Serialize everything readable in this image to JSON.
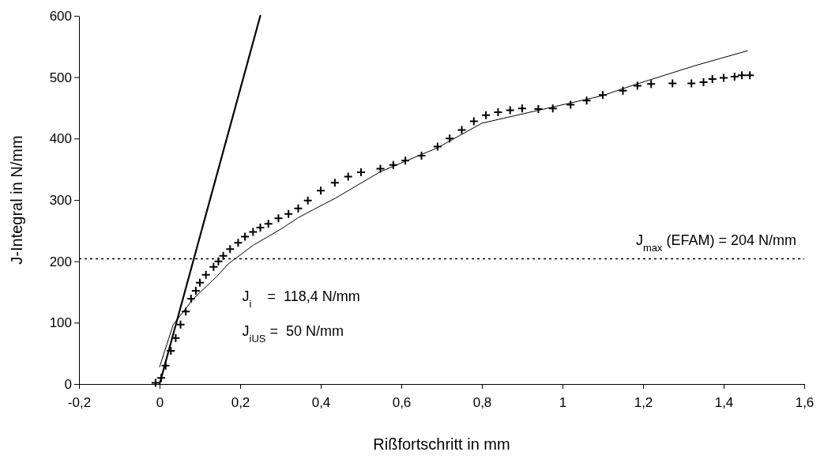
{
  "chart_data": {
    "type": "scatter",
    "xlabel": "Rißfortschritt in mm",
    "ylabel": "J-Integral in N/mm",
    "xlim": [
      -0.2,
      1.6
    ],
    "ylim": [
      0,
      600
    ],
    "xticks": [
      {
        "value": -0.2,
        "label": "-0,2"
      },
      0,
      {
        "value": 0.2,
        "label": "0,2"
      },
      {
        "value": 0.4,
        "label": "0,4"
      },
      {
        "value": 0.6,
        "label": "0,6"
      },
      {
        "value": 0.8,
        "label": "0,8"
      },
      1,
      {
        "value": 1.2,
        "label": "1,2"
      },
      {
        "value": 1.4,
        "label": "1,4"
      },
      {
        "value": 1.6,
        "label": "1,6"
      }
    ],
    "yticks": [
      0,
      100,
      200,
      300,
      400,
      500,
      600
    ],
    "grid": false,
    "series": [
      {
        "color": "#000000",
        "marker": "cross",
        "x": [
          -0.01,
          0.004,
          0.015,
          0.028,
          0.04,
          0.052,
          0.065,
          0.078,
          0.09,
          0.1,
          0.115,
          0.134,
          0.146,
          0.158,
          0.175,
          0.195,
          0.212,
          0.232,
          0.25,
          0.27,
          0.295,
          0.32,
          0.344,
          0.368,
          0.4,
          0.435,
          0.468,
          0.5,
          0.548,
          0.58,
          0.61,
          0.65,
          0.69,
          0.72,
          0.75,
          0.78,
          0.81,
          0.84,
          0.87,
          0.9,
          0.94,
          0.976,
          1.02,
          1.06,
          1.1,
          1.15,
          1.186,
          1.22,
          1.273,
          1.32,
          1.35,
          1.372,
          1.4,
          1.427,
          1.445,
          1.465
        ],
        "values": [
          2,
          10,
          30,
          54,
          75,
          97,
          118,
          139,
          152,
          165,
          178,
          191,
          200,
          209,
          220,
          230,
          240,
          248,
          255,
          261,
          270,
          277,
          286,
          299,
          315,
          328,
          338,
          345,
          351,
          357,
          364,
          372,
          387,
          400,
          414,
          428,
          438,
          443,
          446,
          449,
          448,
          449,
          455,
          462,
          471,
          478,
          486,
          489,
          490,
          490,
          492,
          497,
          499,
          501,
          503,
          503
        ]
      },
      {
        "type": "line",
        "color": "#000000",
        "line_style": "solid",
        "x": [
          0,
          0.034,
          0.084,
          0.14,
          0.171,
          0.232,
          0.3,
          0.344,
          0.381,
          0.437,
          0.548,
          0.69,
          0.8,
          0.9,
          1.0,
          1.1,
          1.18,
          1.33,
          1.459
        ],
        "values": [
          28,
          97,
          139,
          174,
          196,
          226,
          252,
          271,
          284,
          303,
          346,
          385,
          425,
          440,
          455,
          470,
          488,
          519,
          543
        ]
      },
      {
        "type": "line",
        "color": "#000000",
        "line_style": "solid",
        "x": [
          0,
          0.25
        ],
        "values": [
          0,
          600
        ]
      }
    ],
    "ref_lines": [
      {
        "axis": "y",
        "value": 204,
        "label": "J$_{max}$ (EFAM) = 204 N/mm",
        "line_style": "dotted",
        "color": "#000000"
      }
    ],
    "annotations": [
      "J$_{i}$    =  118,4 N/mm",
      "J$_{iUS}$ =  50 N/mm"
    ]
  }
}
